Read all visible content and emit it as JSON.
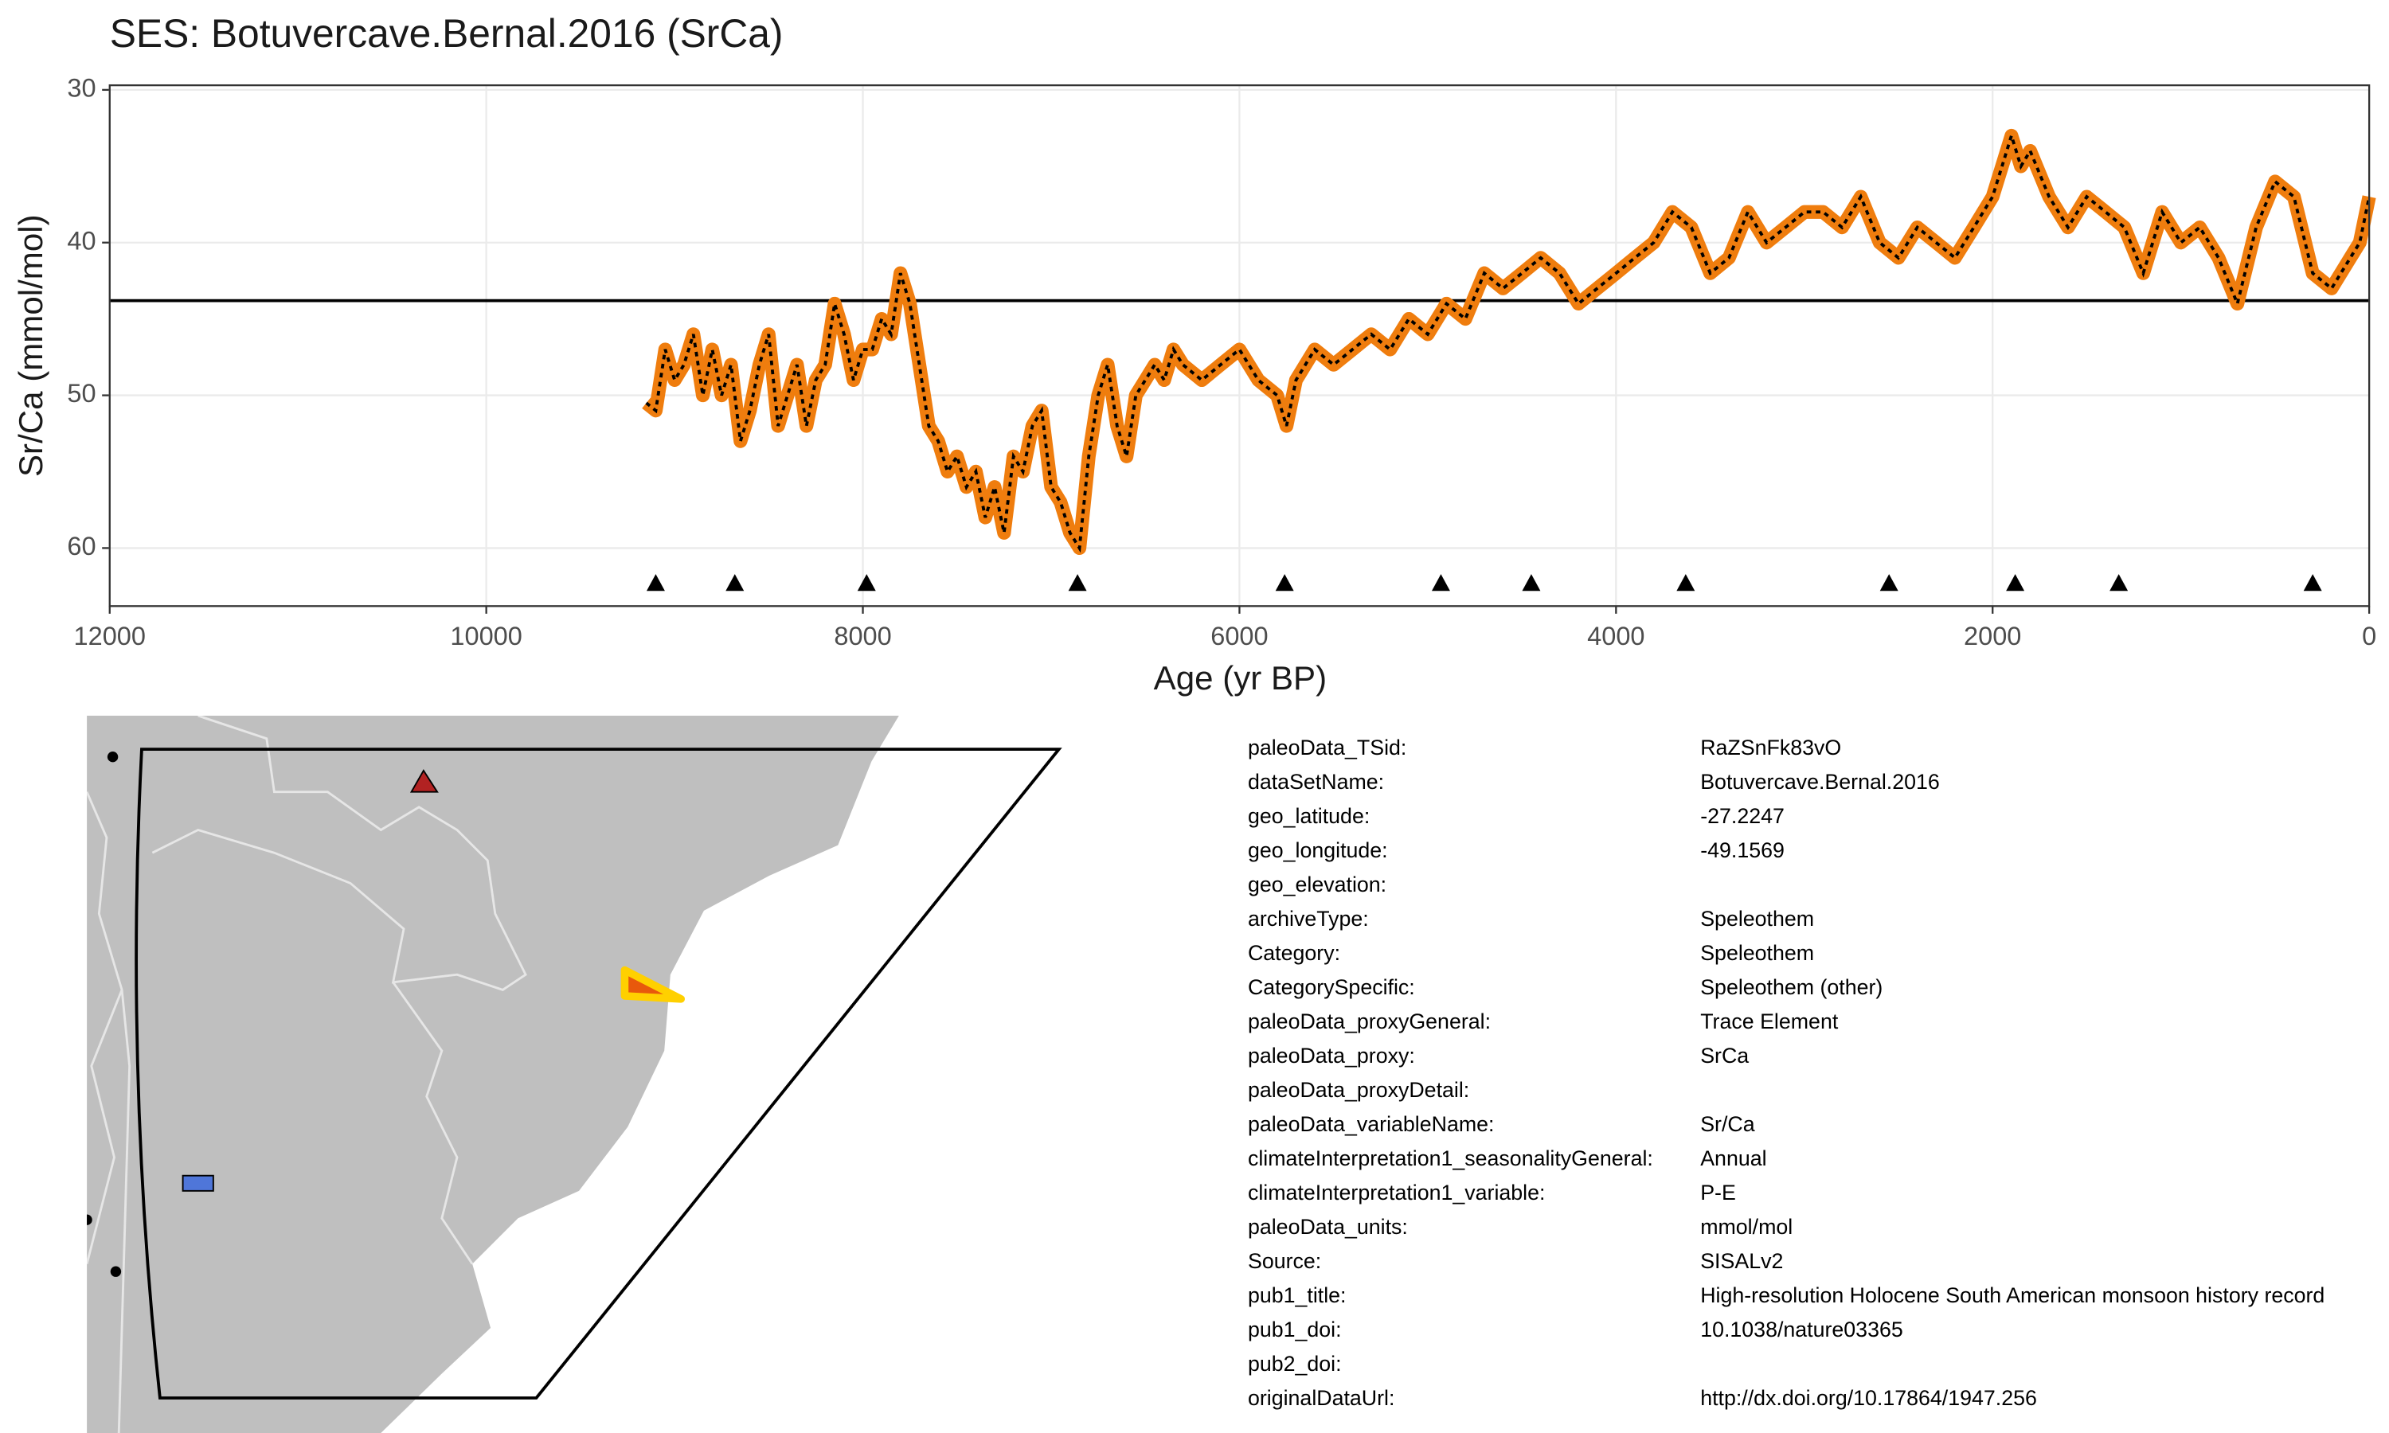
{
  "chart_data": {
    "type": "line",
    "title": "SES: Botuvercave.Bernal.2016 (SrCa)",
    "x_label": "Age (yr BP)",
    "y_label": "Sr/Ca (mmol/mol)",
    "xlim": [
      12000,
      0
    ],
    "xticks": [
      12000,
      10000,
      8000,
      6000,
      4000,
      2000,
      0
    ],
    "ylim": [
      29.7,
      63.8
    ],
    "y_reversed": true,
    "yticks": [
      30,
      40,
      50,
      60
    ],
    "grid": true,
    "color": "#ef7d0e",
    "dash_color": "#000000",
    "hline": 43.8,
    "age_markers": [
      9100,
      8680,
      7980,
      6860,
      5760,
      4930,
      4450,
      3630,
      2550,
      1880,
      1330,
      300
    ],
    "x": [
      9150,
      9100,
      9050,
      9000,
      8950,
      8900,
      8850,
      8800,
      8750,
      8700,
      8650,
      8600,
      8550,
      8500,
      8450,
      8400,
      8350,
      8300,
      8250,
      8200,
      8150,
      8100,
      8050,
      8000,
      7950,
      7900,
      7850,
      7800,
      7750,
      7700,
      7650,
      7600,
      7550,
      7500,
      7450,
      7400,
      7350,
      7300,
      7250,
      7200,
      7150,
      7100,
      7050,
      7000,
      6950,
      6900,
      6850,
      6800,
      6750,
      6700,
      6650,
      6600,
      6550,
      6500,
      6450,
      6400,
      6350,
      6300,
      6200,
      6100,
      6000,
      5900,
      5800,
      5750,
      5700,
      5600,
      5500,
      5400,
      5300,
      5200,
      5100,
      5000,
      4900,
      4800,
      4700,
      4600,
      4500,
      4400,
      4300,
      4200,
      4100,
      4000,
      3900,
      3800,
      3700,
      3600,
      3500,
      3400,
      3300,
      3200,
      3100,
      3000,
      2900,
      2800,
      2700,
      2600,
      2500,
      2400,
      2300,
      2200,
      2100,
      2000,
      1950,
      1900,
      1850,
      1800,
      1700,
      1600,
      1500,
      1400,
      1300,
      1200,
      1100,
      1000,
      900,
      800,
      700,
      600,
      500,
      400,
      300,
      200,
      100,
      50,
      0
    ],
    "values": [
      50.5,
      51,
      47,
      49,
      48,
      46,
      50,
      47,
      50,
      48,
      53,
      51,
      48,
      46,
      52,
      50,
      48,
      52,
      49,
      48,
      44,
      46,
      49,
      47,
      47,
      45,
      46,
      42,
      44,
      48,
      52,
      53,
      55,
      54,
      56,
      55,
      58,
      56,
      59,
      54,
      55,
      52,
      51,
      56,
      57,
      59,
      60,
      54,
      50,
      48,
      52,
      54,
      50,
      49,
      48,
      49,
      47,
      48,
      49,
      48,
      47,
      49,
      50,
      52,
      49,
      47,
      48,
      47,
      46,
      47,
      45,
      46,
      44,
      45,
      42,
      43,
      42,
      41,
      42,
      44,
      43,
      42,
      41,
      40,
      38,
      39,
      42,
      41,
      38,
      40,
      39,
      38,
      38,
      39,
      37,
      40,
      41,
      39,
      40,
      41,
      39,
      37,
      35,
      33,
      35,
      34,
      37,
      39,
      37,
      38,
      39,
      42,
      38,
      40,
      39,
      41,
      44,
      39,
      36,
      37,
      42,
      43,
      41,
      40,
      37
    ]
  },
  "metadata": {
    "rows": [
      {
        "key": "paleoData_TSid:",
        "value": "RaZSnFk83vO"
      },
      {
        "key": "dataSetName:",
        "value": "Botuvercave.Bernal.2016"
      },
      {
        "key": "geo_latitude:",
        "value": "-27.2247"
      },
      {
        "key": "geo_longitude:",
        "value": "-49.1569"
      },
      {
        "key": "geo_elevation:"
      },
      {
        "key": "archiveType:",
        "value": "Speleothem"
      },
      {
        "key": "Category:",
        "value": "Speleothem"
      },
      {
        "key": "CategorySpecific:",
        "value": "Speleothem (other)"
      },
      {
        "key": "paleoData_proxyGeneral:",
        "value": "Trace Element"
      },
      {
        "key": "paleoData_proxy:",
        "value": "SrCa"
      },
      {
        "key": "paleoData_proxyDetail:"
      },
      {
        "key": "paleoData_variableName:",
        "value": "Sr/Ca"
      },
      {
        "key": "climateInterpretation1_seasonalityGeneral:",
        "value": "Annual"
      },
      {
        "key": "climateInterpretation1_variable:",
        "value": "P-E"
      },
      {
        "key": "paleoData_units:",
        "value": "mmol/mol"
      },
      {
        "key": "Source:",
        "value": "SISALv2"
      },
      {
        "key": "pub1_title:",
        "value": "High-resolution Holocene South American monsoon history record"
      },
      {
        "key": "pub1_doi:",
        "value": "10.1038/nature03365"
      },
      {
        "key": "pub2_doi:"
      },
      {
        "key": "originalDataUrl:",
        "value": "http://dx.doi.org/10.17864/1947.256"
      }
    ]
  }
}
